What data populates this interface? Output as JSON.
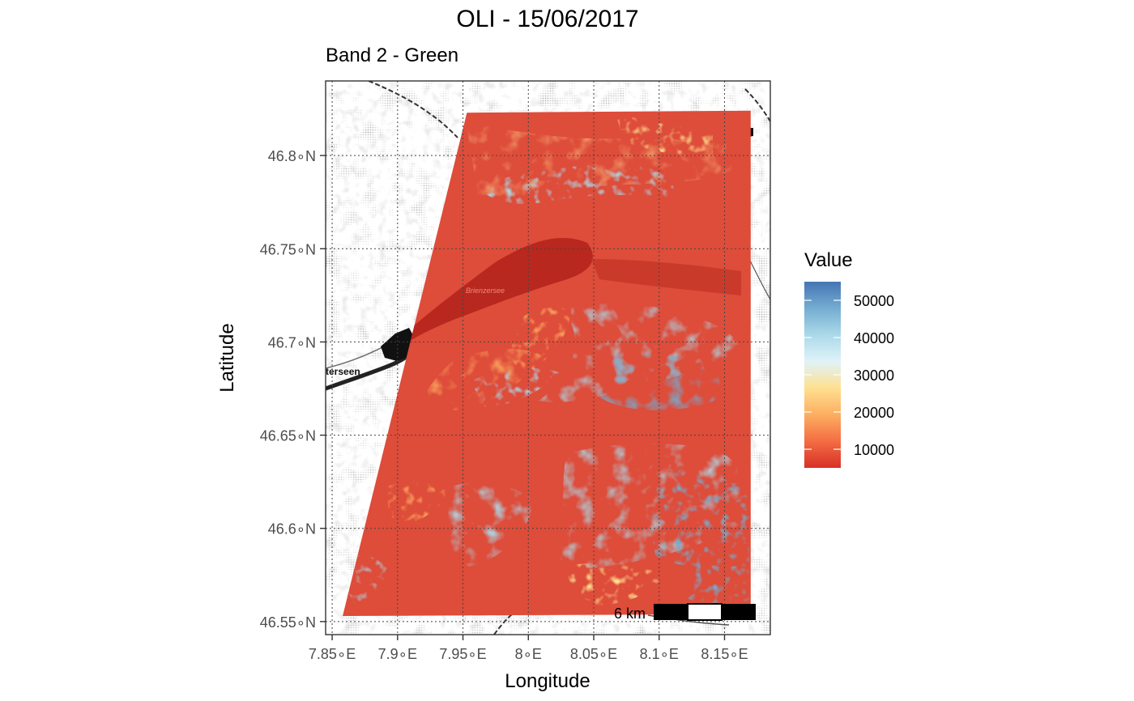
{
  "chart_data": {
    "type": "heatmap",
    "title": "OLI - 15/06/2017",
    "subtitle": "Band 2 - Green",
    "xlabel": "Longitude",
    "ylabel": "Latitude",
    "xlim": [
      7.845,
      8.185
    ],
    "ylim": [
      46.543,
      46.84
    ],
    "x_ticks": [
      {
        "value": 7.85,
        "label": "7.85∘E"
      },
      {
        "value": 7.9,
        "label": "7.9∘E"
      },
      {
        "value": 7.95,
        "label": "7.95∘E"
      },
      {
        "value": 8.0,
        "label": "8∘E"
      },
      {
        "value": 8.05,
        "label": "8.05∘E"
      },
      {
        "value": 8.1,
        "label": "8.1∘E"
      },
      {
        "value": 8.15,
        "label": "8.15∘E"
      }
    ],
    "y_ticks": [
      {
        "value": 46.55,
        "label": "46.55∘N"
      },
      {
        "value": 46.6,
        "label": "46.6∘N"
      },
      {
        "value": 46.65,
        "label": "46.65∘N"
      },
      {
        "value": 46.7,
        "label": "46.7∘N"
      },
      {
        "value": 46.75,
        "label": "46.75∘N"
      },
      {
        "value": 46.8,
        "label": "46.8∘N"
      }
    ],
    "grid": true,
    "legend": {
      "title": "Value",
      "placement": "right",
      "range": [
        5000,
        55000
      ],
      "ticks": [
        10000,
        20000,
        30000,
        40000,
        50000
      ],
      "colors": [
        "#d73027",
        "#f46d43",
        "#fdae61",
        "#fee090",
        "#e0f3f8",
        "#abd9e9",
        "#74add1",
        "#4575b4"
      ]
    },
    "raster_extent": {
      "corners_lonlat": [
        [
          7.953,
          46.823
        ],
        [
          8.17,
          46.824
        ],
        [
          8.17,
          46.554
        ],
        [
          7.858,
          46.553
        ]
      ]
    },
    "map_labels": [
      "terseen",
      "Brienzersee"
    ],
    "scalebar": {
      "label": "6 km",
      "placement": "bottom-right"
    }
  }
}
